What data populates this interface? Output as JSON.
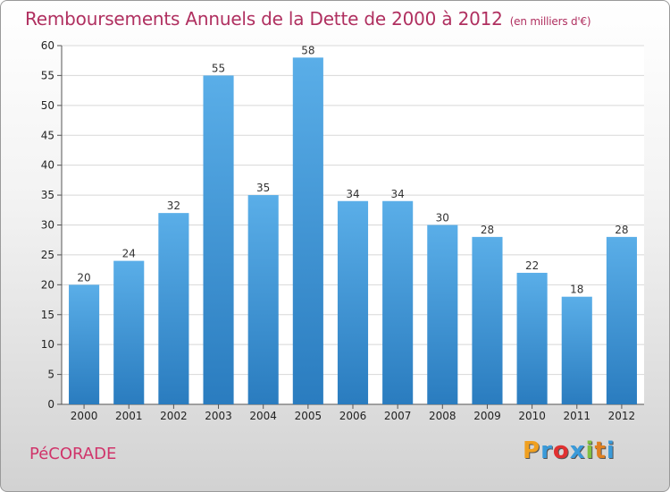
{
  "chart_data": {
    "type": "bar",
    "title": "Remboursements Annuels de la Dette de 2000 à 2012",
    "unit_note": "(en milliers d'€)",
    "categories": [
      "2000",
      "2001",
      "2002",
      "2003",
      "2004",
      "2005",
      "2006",
      "2007",
      "2008",
      "2009",
      "2010",
      "2011",
      "2012"
    ],
    "values": [
      20,
      24,
      32,
      55,
      35,
      58,
      34,
      34,
      30,
      28,
      22,
      18,
      28
    ],
    "ylim": [
      0,
      60
    ],
    "yticks": [
      0,
      5,
      10,
      15,
      20,
      25,
      30,
      35,
      40,
      45,
      50,
      55,
      60
    ],
    "grid": true,
    "bar_color_top": "#5aaee8",
    "bar_color_bottom": "#2a7cbf",
    "title_color": "#b03060"
  },
  "footer": {
    "commune": "PéCORADE",
    "logo_letters": [
      "P",
      "r",
      "o",
      "x",
      "i",
      "t",
      "i"
    ],
    "logo_colors": [
      "#f0a020",
      "#3a9ad9",
      "#e03030",
      "#3a9ad9",
      "#80c040",
      "#e08020",
      "#3a9ad9"
    ]
  }
}
